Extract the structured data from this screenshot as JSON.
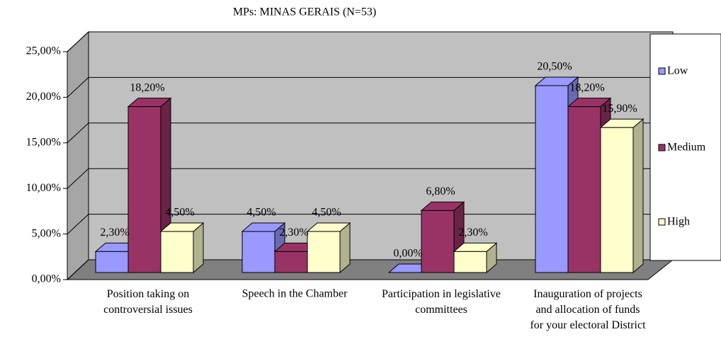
{
  "chart_data": {
    "type": "bar3d",
    "title": "MPs: MINAS GERAIS (N=53)",
    "categories": [
      "Position taking on\ncontroversial issues",
      "Speech in the Chamber",
      "Participation in legislative\ncommittees",
      "Inauguration of projects\nand allocation of funds\nfor your electoral District"
    ],
    "series": [
      {
        "name": "Low",
        "color": "#9999ff",
        "values": [
          2.3,
          4.5,
          0,
          20.5
        ],
        "value_labels": [
          "2,30%",
          "4,50%",
          "0,00%",
          "20,50%"
        ]
      },
      {
        "name": "Medium",
        "color": "#993366",
        "values": [
          18.2,
          2.3,
          6.8,
          18.2
        ],
        "value_labels": [
          "18,20%",
          "2,30%",
          "6,80%",
          "18,20%"
        ]
      },
      {
        "name": "High",
        "color": "#ffffcc",
        "values": [
          4.5,
          4.5,
          2.3,
          15.9
        ],
        "value_labels": [
          "4,50%",
          "4,50%",
          "2,30%",
          "15,90%"
        ]
      }
    ],
    "ylim": [
      0,
      25
    ],
    "yticks": [
      {
        "value": 0,
        "label": "0,00%"
      },
      {
        "value": 5,
        "label": "5,00%"
      },
      {
        "value": 10,
        "label": "10,00%"
      },
      {
        "value": 15,
        "label": "15,00%"
      },
      {
        "value": 20,
        "label": "20,00%"
      },
      {
        "value": 25,
        "label": "25,00%"
      }
    ],
    "grid": true,
    "legend": "right"
  }
}
